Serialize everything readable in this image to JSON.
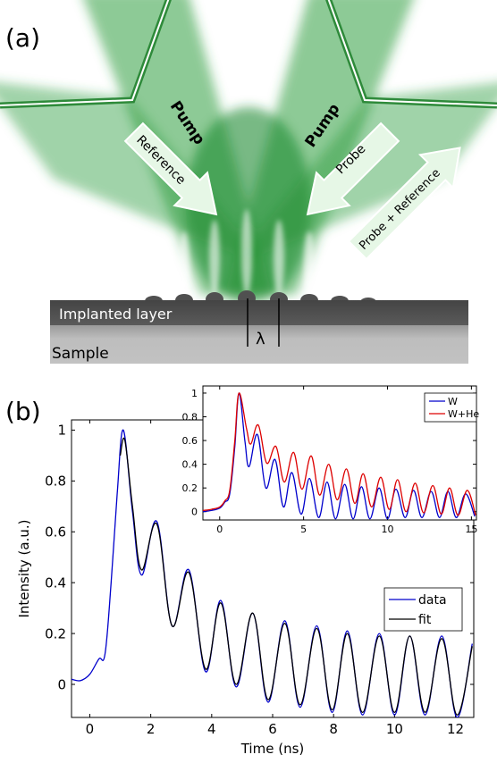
{
  "panel_a": {
    "label": "(a)",
    "pump_left": "Pump",
    "pump_right": "Pump",
    "arrow_reference": "Reference",
    "arrow_probe": "Probe",
    "arrow_probe_reference": "Probe + Reference",
    "layer_implanted": "Implanted layer",
    "layer_sample": "Sample",
    "wavelength_symbol": "λ",
    "colors": {
      "beam": "#2e9e3e",
      "arrow_fill": "#e6f7e6",
      "implanted": "#4d4d4d",
      "sample": "#bdbdbd"
    }
  },
  "panel_b": {
    "label": "(b)",
    "chart_data": [
      {
        "type": "line",
        "xlabel": "Time (ns)",
        "ylabel": "Intensity (a.u.)",
        "xlim": [
          -0.6,
          12.6
        ],
        "ylim": [
          -0.13,
          1.04
        ],
        "xticks": [
          0,
          2,
          4,
          6,
          8,
          10,
          12
        ],
        "yticks": [
          0,
          0.2,
          0.4,
          0.6,
          0.8,
          1
        ],
        "ytick_labels": [
          "0",
          "0.2",
          "0.4",
          "0.6",
          "0.8",
          "1"
        ],
        "grid": false,
        "legend": "right",
        "series": [
          {
            "name": "data",
            "color": "#0000cc",
            "points": [
              [
                -0.6,
                0.02
              ],
              [
                -0.3,
                0.015
              ],
              [
                0,
                0.04
              ],
              [
                0.3,
                0.1
              ],
              [
                0.5,
                0.12
              ],
              [
                0.7,
                0.4
              ],
              [
                0.9,
                0.75
              ],
              [
                1.1,
                1.0
              ],
              [
                1.4,
                0.68
              ],
              [
                1.7,
                0.43
              ],
              [
                2.2,
                0.64
              ],
              [
                2.7,
                0.23
              ],
              [
                3.25,
                0.45
              ],
              [
                3.8,
                0.05
              ],
              [
                4.3,
                0.33
              ],
              [
                4.8,
                -0.01
              ],
              [
                5.35,
                0.28
              ],
              [
                5.85,
                -0.07
              ],
              [
                6.4,
                0.25
              ],
              [
                6.9,
                -0.09
              ],
              [
                7.45,
                0.23
              ],
              [
                7.95,
                -0.11
              ],
              [
                8.45,
                0.21
              ],
              [
                8.95,
                -0.12
              ],
              [
                9.5,
                0.2
              ],
              [
                10.0,
                -0.12
              ],
              [
                10.5,
                0.19
              ],
              [
                11.0,
                -0.12
              ],
              [
                11.55,
                0.19
              ],
              [
                12.05,
                -0.13
              ],
              [
                12.55,
                0.16
              ]
            ]
          },
          {
            "name": "fit",
            "color": "#000000",
            "points": [
              [
                1.0,
                0.9
              ],
              [
                1.15,
                0.96
              ],
              [
                1.4,
                0.7
              ],
              [
                1.7,
                0.45
              ],
              [
                2.2,
                0.63
              ],
              [
                2.7,
                0.23
              ],
              [
                3.25,
                0.44
              ],
              [
                3.8,
                0.06
              ],
              [
                4.3,
                0.32
              ],
              [
                4.8,
                0.0
              ],
              [
                5.35,
                0.28
              ],
              [
                5.85,
                -0.06
              ],
              [
                6.4,
                0.24
              ],
              [
                6.9,
                -0.08
              ],
              [
                7.45,
                0.22
              ],
              [
                7.95,
                -0.1
              ],
              [
                8.45,
                0.2
              ],
              [
                8.95,
                -0.11
              ],
              [
                9.5,
                0.19
              ],
              [
                10.0,
                -0.11
              ],
              [
                10.5,
                0.19
              ],
              [
                11.0,
                -0.11
              ],
              [
                11.55,
                0.18
              ],
              [
                12.05,
                -0.12
              ],
              [
                12.55,
                0.15
              ]
            ]
          }
        ]
      },
      {
        "type": "line",
        "xlabel": "",
        "ylabel": "",
        "xlim": [
          -1,
          15.3
        ],
        "ylim": [
          -0.07,
          1.06
        ],
        "xticks": [
          0,
          5,
          10,
          15
        ],
        "yticks": [
          0,
          0.2,
          0.4,
          0.6,
          0.8,
          1
        ],
        "ytick_labels": [
          "0",
          "0.2",
          "0.4",
          "0.6",
          "0.8",
          "1"
        ],
        "grid": false,
        "legend": "top-right",
        "series": [
          {
            "name": "W",
            "color": "#0000cc",
            "points": [
              [
                -1,
                0.0
              ],
              [
                -0.5,
                0.01
              ],
              [
                0,
                0.03
              ],
              [
                0.3,
                0.08
              ],
              [
                0.6,
                0.15
              ],
              [
                0.9,
                0.55
              ],
              [
                1.15,
                1.0
              ],
              [
                1.5,
                0.6
              ],
              [
                1.75,
                0.38
              ],
              [
                2.25,
                0.65
              ],
              [
                2.75,
                0.2
              ],
              [
                3.3,
                0.44
              ],
              [
                3.8,
                0.04
              ],
              [
                4.3,
                0.33
              ],
              [
                4.85,
                -0.02
              ],
              [
                5.35,
                0.28
              ],
              [
                5.9,
                -0.05
              ],
              [
                6.4,
                0.25
              ],
              [
                6.9,
                -0.06
              ],
              [
                7.45,
                0.23
              ],
              [
                7.95,
                -0.06
              ],
              [
                8.45,
                0.21
              ],
              [
                8.95,
                -0.06
              ],
              [
                9.5,
                0.2
              ],
              [
                10.0,
                -0.06
              ],
              [
                10.5,
                0.19
              ],
              [
                11.05,
                -0.05
              ],
              [
                11.55,
                0.18
              ],
              [
                12.05,
                -0.05
              ],
              [
                12.6,
                0.17
              ],
              [
                13.1,
                -0.05
              ],
              [
                13.6,
                0.17
              ],
              [
                14.1,
                -0.05
              ],
              [
                14.65,
                0.15
              ],
              [
                15.2,
                -0.04
              ]
            ]
          },
          {
            "name": "W+He",
            "color": "#dd0000",
            "points": [
              [
                -1,
                0.01
              ],
              [
                -0.5,
                0.02
              ],
              [
                0,
                0.04
              ],
              [
                0.3,
                0.09
              ],
              [
                0.6,
                0.18
              ],
              [
                0.9,
                0.6
              ],
              [
                1.15,
                1.0
              ],
              [
                1.6,
                0.7
              ],
              [
                1.85,
                0.57
              ],
              [
                2.3,
                0.73
              ],
              [
                2.8,
                0.41
              ],
              [
                3.35,
                0.55
              ],
              [
                3.85,
                0.25
              ],
              [
                4.4,
                0.5
              ],
              [
                4.9,
                0.19
              ],
              [
                5.45,
                0.47
              ],
              [
                5.95,
                0.14
              ],
              [
                6.5,
                0.4
              ],
              [
                7.0,
                0.1
              ],
              [
                7.55,
                0.36
              ],
              [
                8.05,
                0.07
              ],
              [
                8.55,
                0.32
              ],
              [
                9.05,
                0.04
              ],
              [
                9.6,
                0.29
              ],
              [
                10.1,
                0.02
              ],
              [
                10.6,
                0.27
              ],
              [
                11.1,
                0.0
              ],
              [
                11.65,
                0.24
              ],
              [
                12.15,
                -0.01
              ],
              [
                12.7,
                0.22
              ],
              [
                13.2,
                -0.02
              ],
              [
                13.7,
                0.2
              ],
              [
                14.2,
                -0.03
              ],
              [
                14.75,
                0.18
              ],
              [
                15.25,
                -0.03
              ]
            ]
          }
        ]
      }
    ]
  }
}
